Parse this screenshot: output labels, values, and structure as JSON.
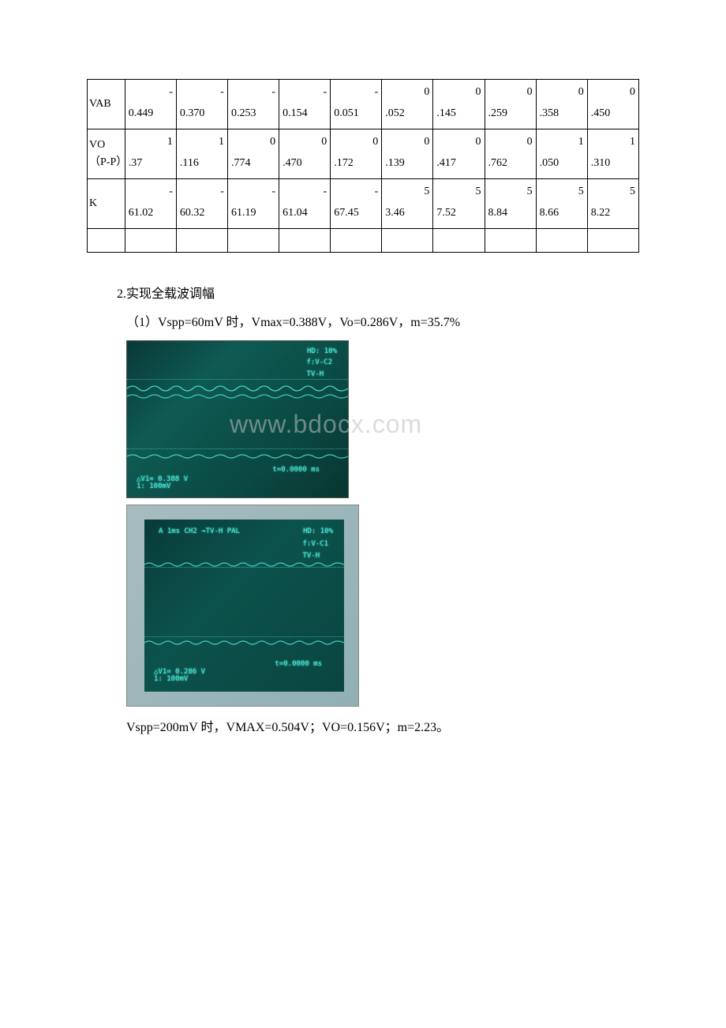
{
  "table": {
    "rows": [
      {
        "label": "VAB",
        "cells": [
          {
            "top": "-",
            "bottom": "0.449"
          },
          {
            "top": "-",
            "bottom": "0.370"
          },
          {
            "top": "-",
            "bottom": "0.253"
          },
          {
            "top": "-",
            "bottom": "0.154"
          },
          {
            "top": "-",
            "bottom": "0.051"
          },
          {
            "top": "0",
            "bottom": ".052"
          },
          {
            "top": "0",
            "bottom": ".145"
          },
          {
            "top": "0",
            "bottom": ".259"
          },
          {
            "top": "0",
            "bottom": ".358"
          },
          {
            "top": "0",
            "bottom": ".450"
          }
        ]
      },
      {
        "label": "VO（P-P）",
        "cells": [
          {
            "top": "1",
            "bottom": ".37"
          },
          {
            "top": "1",
            "bottom": ".116"
          },
          {
            "top": "0",
            "bottom": ".774"
          },
          {
            "top": "0",
            "bottom": ".470"
          },
          {
            "top": "0",
            "bottom": ".172"
          },
          {
            "top": "0",
            "bottom": ".139"
          },
          {
            "top": "0",
            "bottom": ".417"
          },
          {
            "top": "0",
            "bottom": ".762"
          },
          {
            "top": "1",
            "bottom": ".050"
          },
          {
            "top": "1",
            "bottom": ".310"
          }
        ]
      },
      {
        "label": "K",
        "cells": [
          {
            "top": "-",
            "bottom": "61.02"
          },
          {
            "top": "-",
            "bottom": "60.32"
          },
          {
            "top": "-",
            "bottom": "61.19"
          },
          {
            "top": "-",
            "bottom": "61.04"
          },
          {
            "top": "-",
            "bottom": "67.45"
          },
          {
            "top": "5",
            "bottom": "3.46"
          },
          {
            "top": "5",
            "bottom": "7.52"
          },
          {
            "top": "5",
            "bottom": "8.84"
          },
          {
            "top": "5",
            "bottom": "8.66"
          },
          {
            "top": "5",
            "bottom": "8.22"
          }
        ]
      }
    ]
  },
  "heading": "2.实现全载波调幅",
  "sub1": "（1）Vspp=60mV 时，Vmax=0.388V，Vo=0.286V，m=35.7%",
  "scope1": {
    "hd": "HD: 10%",
    "ch": "f:V-C2\nTV-H",
    "v1": "△V1= 0.388 V",
    "scale": "1: 100mV",
    "t": "t=0.0000 ms"
  },
  "scope2": {
    "top": "A   1ms   CH2 →TV-H PAL",
    "hd": "HD: 10%",
    "ch": "f:V-C1\nTV-H",
    "v1": "△V1= 0.286 V",
    "scale": "1: 100mV",
    "t": "t=0.0000 ms"
  },
  "watermark": "www.bdocx.com",
  "bottom": "Vspp=200mV 时，VMAX=0.504V；VO=0.156V；m=2.23。",
  "colors": {
    "scope_glow": "#4de8d8",
    "scope_bg_dark": "#083a38"
  }
}
